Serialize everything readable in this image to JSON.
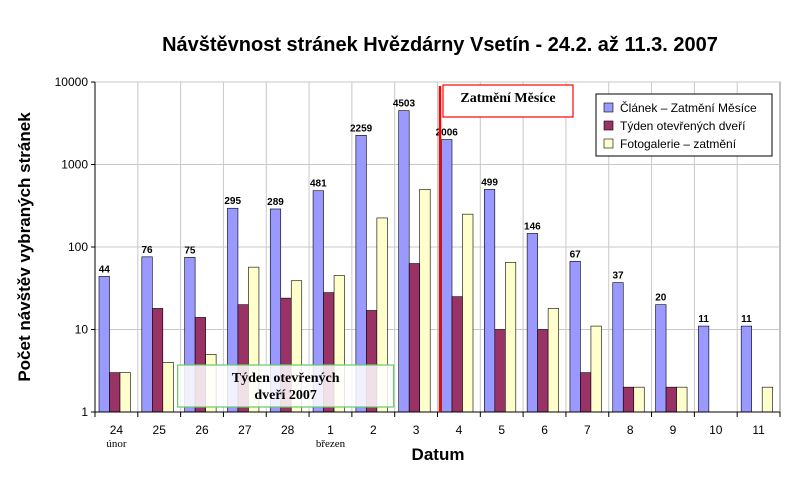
{
  "chart_data": {
    "type": "bar",
    "title": "Návštěvnost stránek Hvězdárny Vsetín - 24.2. až 11.3. 2007",
    "xlabel": "Datum",
    "ylabel": "Počet návštěv vybraných stránek",
    "yscale": "log",
    "ylim": [
      1,
      10000
    ],
    "yticks": [
      "1",
      "10",
      "100",
      "1000",
      "10000"
    ],
    "categories": [
      "24",
      "25",
      "26",
      "27",
      "28",
      "1",
      "2",
      "3",
      "4",
      "5",
      "6",
      "7",
      "8",
      "9",
      "10",
      "11"
    ],
    "category_sublabels": {
      "0": "únor",
      "5": "březen"
    },
    "grid": "horizontal and vertical",
    "legend_position": "top-right",
    "series": [
      {
        "name": "Článek – Zatmění Měsíce",
        "color": "#9999ff",
        "values": [
          44,
          76,
          75,
          295,
          289,
          481,
          2259,
          4503,
          2006,
          499,
          146,
          67,
          37,
          20,
          11,
          11
        ],
        "labels": [
          "44",
          "76",
          "75",
          "295",
          "289",
          "481",
          "2259",
          "4503",
          "2006",
          "499",
          "146",
          "67",
          "37",
          "20",
          "11",
          "11"
        ]
      },
      {
        "name": "Týden otevřených dveří",
        "color": "#993366",
        "values": [
          3,
          18,
          14,
          20,
          24,
          28,
          17,
          63,
          25,
          10,
          10,
          3,
          2,
          2,
          1,
          1
        ]
      },
      {
        "name": "Fotogalerie – zatmění",
        "color": "#ffffcc",
        "values": [
          3,
          4,
          5,
          57,
          39,
          45,
          225,
          500,
          250,
          65,
          18,
          11,
          2,
          2,
          1,
          2
        ]
      }
    ],
    "annotations": [
      {
        "text": "Zatmění Měsíce",
        "color": "#ff0000"
      },
      {
        "text_lines": [
          "Týden otevřených",
          "dveří 2007"
        ],
        "color": "#66cc66"
      }
    ]
  }
}
